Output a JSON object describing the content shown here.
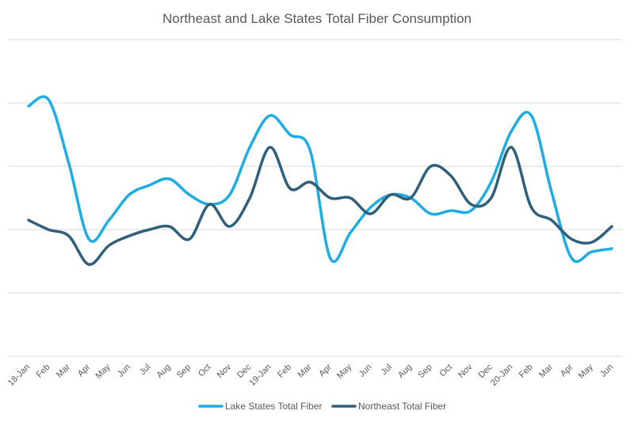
{
  "chart_data": {
    "type": "line",
    "title": "Northeast and Lake States Total Fiber Consumption",
    "xlabel": "",
    "ylabel": "",
    "categories": [
      "18-Jan",
      "Feb",
      "Mar",
      "Apr",
      "May",
      "Jun",
      "Jul",
      "Aug",
      "Sep",
      "Oct",
      "Nov",
      "Dec",
      "19-Jan",
      "Feb",
      "Mar",
      "Apr",
      "May",
      "Jun",
      "Jul",
      "Aug",
      "Sep",
      "Oct",
      "Nov",
      "Dec",
      "20-Jan",
      "Feb",
      "Mar",
      "Apr",
      "May",
      "Jun"
    ],
    "ylim": [
      0,
      5
    ],
    "grid": true,
    "y_tick_labels_shown": false,
    "legend_position": "bottom",
    "series": [
      {
        "name": "Lake States Total Fiber",
        "color": "#1CADE4",
        "values": [
          3.95,
          4.05,
          3.05,
          1.85,
          2.15,
          2.55,
          2.7,
          2.8,
          2.55,
          2.4,
          2.55,
          3.3,
          3.8,
          3.5,
          3.25,
          1.55,
          1.95,
          2.35,
          2.55,
          2.5,
          2.25,
          2.3,
          2.3,
          2.75,
          3.55,
          3.8,
          2.6,
          1.55,
          1.65,
          1.7
        ]
      },
      {
        "name": "Northeast Total Fiber",
        "color": "#2F5F7A",
        "values": [
          2.15,
          2.0,
          1.9,
          1.45,
          1.75,
          1.9,
          2.0,
          2.05,
          1.85,
          2.4,
          2.05,
          2.5,
          3.3,
          2.65,
          2.75,
          2.5,
          2.5,
          2.25,
          2.55,
          2.5,
          3.0,
          2.85,
          2.4,
          2.5,
          3.3,
          2.35,
          2.15,
          1.85,
          1.8,
          2.05
        ]
      }
    ]
  }
}
